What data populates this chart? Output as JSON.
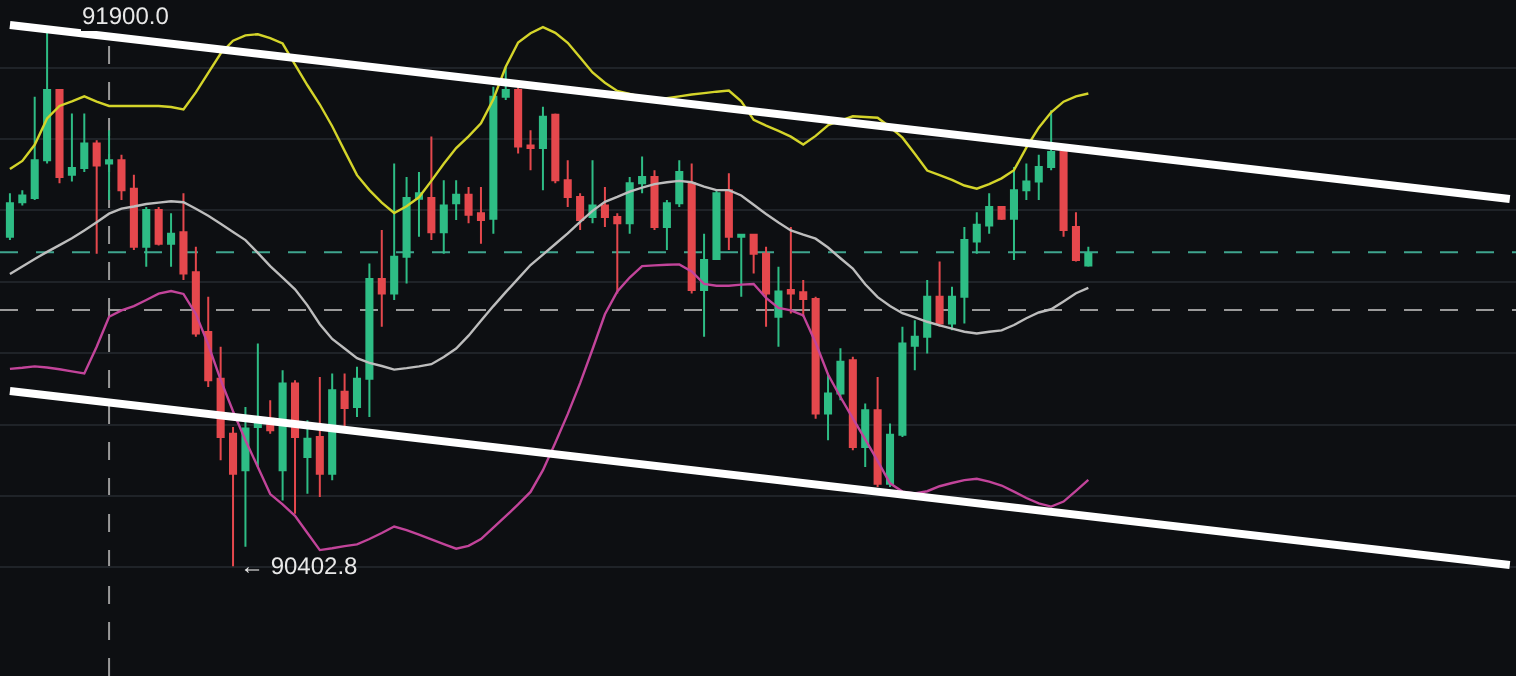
{
  "chart_data": {
    "type": "candlestick",
    "categories": [
      null,
      null,
      null,
      null,
      null,
      null,
      null,
      null,
      null,
      null,
      null,
      null,
      null,
      null,
      null,
      null,
      null,
      null,
      null,
      null,
      null,
      null,
      null,
      null,
      null,
      null,
      null,
      null,
      null,
      null,
      null,
      null,
      null,
      null,
      null,
      null,
      null,
      null,
      null,
      null,
      null,
      null,
      null,
      null,
      null,
      null,
      null,
      null,
      null,
      null,
      null,
      null,
      null,
      null,
      null,
      null,
      null,
      null,
      null,
      null,
      null,
      null,
      null,
      null,
      null,
      null,
      null,
      null,
      null,
      null,
      null,
      null,
      null,
      null,
      null,
      null,
      null,
      null,
      null,
      null,
      null,
      null,
      null,
      null,
      null,
      null,
      null,
      null,
      null,
      null,
      null,
      null,
      null,
      null,
      null,
      null,
      null,
      null,
      null,
      null,
      null,
      null,
      null,
      null,
      null,
      null,
      null,
      null,
      null,
      null,
      null,
      null,
      null,
      null,
      null,
      null,
      null,
      null,
      null,
      null,
      null,
      null
    ],
    "ohlc": [
      [
        91326,
        91448,
        91317,
        91420
      ],
      [
        91423,
        91457,
        91414,
        91442
      ],
      [
        91435,
        91719,
        91429,
        91541
      ],
      [
        91541,
        91900,
        91532,
        91738
      ],
      [
        91738,
        91740,
        91476,
        91494
      ],
      [
        91500,
        91672,
        91481,
        91519
      ],
      [
        91519,
        91672,
        91508,
        91588
      ],
      [
        91588,
        91597,
        91279,
        91526
      ],
      [
        91532,
        91625,
        91429,
        91541
      ],
      [
        91541,
        91556,
        91429,
        91457
      ],
      [
        91461,
        91500,
        91289,
        91298
      ],
      [
        91298,
        91410,
        91242,
        91401
      ],
      [
        91401,
        91410,
        91302,
        91307
      ],
      [
        91307,
        91392,
        91242,
        91335
      ],
      [
        91339,
        91448,
        91205,
        91223
      ],
      [
        91227,
        91298,
        91046,
        91055
      ],
      [
        91059,
        91158,
        90905,
        90924
      ],
      [
        90928,
        91018,
        90700,
        90765
      ],
      [
        90774,
        90793,
        90402.8,
        90662
      ],
      [
        90672,
        90849,
        90457,
        90789
      ],
      [
        90793,
        91027,
        90681,
        90812
      ],
      [
        90816,
        90868,
        90774,
        90784
      ],
      [
        90672,
        90952,
        90587,
        90915
      ],
      [
        90915,
        90924,
        90550,
        90765
      ],
      [
        90709,
        90812,
        90606,
        90760
      ],
      [
        90765,
        90933,
        90597,
        90662
      ],
      [
        90662,
        90943,
        90644,
        90896
      ],
      [
        90892,
        90943,
        90793,
        90846
      ],
      [
        90849,
        90962,
        90821,
        90928
      ],
      [
        90928,
        91251,
        90821,
        91208
      ],
      [
        91208,
        91345,
        91074,
        91167
      ],
      [
        91167,
        91532,
        91149,
        91270
      ],
      [
        91270,
        91494,
        91195,
        91435
      ],
      [
        91433,
        91508,
        91326,
        91448
      ],
      [
        91435,
        91607,
        91317,
        91339
      ],
      [
        91339,
        91485,
        91279,
        91414
      ],
      [
        91420,
        91485,
        91373,
        91444
      ],
      [
        91444,
        91466,
        91364,
        91388
      ],
      [
        91392,
        91466,
        91307,
        91373
      ],
      [
        91377,
        91747,
        91335,
        91719
      ],
      [
        91719,
        91803,
        91710,
        91738
      ],
      [
        91738,
        91756,
        91560,
        91579
      ],
      [
        91582,
        91625,
        91513,
        91575
      ],
      [
        91575,
        91691,
        91457,
        91663
      ],
      [
        91668,
        91672,
        91476,
        91485
      ],
      [
        91485,
        91541,
        91410,
        91438
      ],
      [
        91438,
        91448,
        91345,
        91373
      ],
      [
        91382,
        91541,
        91364,
        91414
      ],
      [
        91414,
        91466,
        91354,
        91382
      ],
      [
        91382,
        91392,
        91167,
        91364
      ],
      [
        91364,
        91494,
        91335,
        91476
      ],
      [
        91476,
        91551,
        91448,
        91494
      ],
      [
        91494,
        91513,
        91345,
        91354
      ],
      [
        91354,
        91429,
        91289,
        91420
      ],
      [
        91420,
        91541,
        91410,
        91508
      ],
      [
        91476,
        91532,
        91167,
        91177
      ],
      [
        91177,
        91335,
        91046,
        91261
      ],
      [
        91264,
        91457,
        91261,
        91448
      ],
      [
        91457,
        91504,
        91289,
        91326
      ],
      [
        91326,
        91335,
        91158,
        91332
      ],
      [
        91332,
        91335,
        91223,
        91279
      ],
      [
        91279,
        91298,
        91074,
        91167
      ],
      [
        91102,
        91242,
        91018,
        91173
      ],
      [
        91177,
        91354,
        91111,
        91167
      ],
      [
        91171,
        91205,
        91102,
        91152
      ],
      [
        91152,
        91158,
        90816,
        90831
      ],
      [
        90831,
        90943,
        90756,
        90887
      ],
      [
        90887,
        91014,
        90868,
        90976
      ],
      [
        90980,
        90990,
        90728,
        90737
      ],
      [
        90737,
        90859,
        90681,
        90840
      ],
      [
        90840,
        90933,
        90625,
        90634
      ],
      [
        90634,
        90803,
        90625,
        90771
      ],
      [
        90771,
        91074,
        90765,
        91027
      ],
      [
        91021,
        91092,
        90952,
        91046
      ],
      [
        91046,
        91205,
        90999,
        91158
      ],
      [
        91158,
        91257,
        91074,
        91083
      ],
      [
        91083,
        91186,
        91064,
        91158
      ],
      [
        91158,
        91354,
        91083,
        91317
      ],
      [
        91313,
        91395,
        91279,
        91360
      ],
      [
        91358,
        91448,
        91335,
        91410
      ],
      [
        91410,
        91410,
        91373,
        91377
      ],
      [
        91377,
        91522,
        91261,
        91457
      ],
      [
        91457,
        91532,
        91429,
        91481
      ],
      [
        91481,
        91556,
        91429,
        91522
      ],
      [
        91522,
        91681,
        91513,
        91564
      ],
      [
        91564,
        91564,
        91326,
        91345
      ],
      [
        91354,
        91395,
        91257,
        91261
      ],
      [
        91246,
        91298,
        91242,
        91279
      ],
      null,
      null,
      null,
      null,
      null,
      null,
      null,
      null,
      null,
      null,
      null,
      null,
      null,
      null,
      null,
      null,
      null,
      null,
      null,
      null,
      null,
      null,
      null,
      null,
      null,
      null,
      null,
      null,
      null,
      null,
      null,
      null,
      null,
      null
    ],
    "colors": [
      "#2ebd85",
      "#2ebd85",
      "#2ebd85",
      "#2ebd85",
      "#e5484d",
      "#2ebd85",
      "#2ebd85",
      "#e5484d",
      "#2ebd85",
      "#e5484d",
      "#e5484d",
      "#2ebd85",
      "#e5484d",
      "#2ebd85",
      "#e5484d",
      "#e5484d",
      "#e5484d",
      "#e5484d",
      "#e5484d",
      "#2ebd85",
      "#2ebd85",
      "#e5484d",
      "#2ebd85",
      "#e5484d",
      "#2ebd85",
      "#e5484d",
      "#2ebd85",
      "#e5484d",
      "#2ebd85",
      "#2ebd85",
      "#e5484d",
      "#2ebd85",
      "#2ebd85",
      "#2ebd85",
      "#e5484d",
      "#2ebd85",
      "#2ebd85",
      "#e5484d",
      "#e5484d",
      "#2ebd85",
      "#2ebd85",
      "#e5484d",
      "#e5484d",
      "#2ebd85",
      "#e5484d",
      "#e5484d",
      "#e5484d",
      "#2ebd85",
      "#e5484d",
      "#e5484d",
      "#2ebd85",
      "#2ebd85",
      "#e5484d",
      "#2ebd85",
      "#2ebd85",
      "#e5484d",
      "#2ebd85",
      "#2ebd85",
      "#e5484d",
      "#2ebd85",
      "#e5484d",
      "#e5484d",
      "#2ebd85",
      "#e5484d",
      "#e5484d",
      "#e5484d",
      "#2ebd85",
      "#2ebd85",
      "#e5484d",
      "#2ebd85",
      "#e5484d",
      "#2ebd85",
      "#2ebd85",
      "#2ebd85",
      "#2ebd85",
      "#e5484d",
      "#2ebd85",
      "#2ebd85",
      "#2ebd85",
      "#2ebd85",
      "#e5484d",
      "#2ebd85",
      "#2ebd85",
      "#2ebd85",
      "#2ebd85",
      "#e5484d",
      "#e5484d",
      "#2ebd85",
      null,
      null,
      null,
      null,
      null,
      null,
      null,
      null,
      null,
      null,
      null,
      null,
      null,
      null,
      null,
      null,
      null,
      null,
      null,
      null,
      null,
      null,
      null,
      null,
      null,
      null,
      null,
      null,
      null,
      null,
      null,
      null,
      null,
      null
    ],
    "series": [
      {
        "type": "line",
        "color": "#d4d42a",
        "values": [
          91516,
          91539,
          91584,
          91658,
          91693,
          91706,
          91720,
          91705,
          91693,
          91693,
          91693,
          91693,
          91693,
          91690,
          91683,
          91731,
          91786,
          91840,
          91876,
          91891,
          91894,
          91883,
          91868,
          91809,
          91751,
          91697,
          91636,
          91567,
          91499,
          91457,
          91422,
          91393,
          91412,
          91437,
          91483,
          91531,
          91575,
          91608,
          91644,
          91712,
          91803,
          91871,
          91897,
          91914,
          91898,
          91870,
          91829,
          91787,
          91758,
          91735,
          91727,
          91718,
          91710,
          91715,
          91720,
          91725,
          91729,
          91733,
          91736,
          91706,
          91654,
          91638,
          91623,
          91607,
          91585,
          91609,
          91639,
          91652,
          91664,
          91662,
          91660,
          91634,
          91604,
          91559,
          91512,
          91499,
          91486,
          91470,
          91461,
          91474,
          91490,
          91513,
          91576,
          91632,
          91675,
          91705,
          91720,
          91728,
          null,
          null,
          null,
          null,
          null,
          null,
          null,
          null,
          null,
          null,
          null,
          null,
          null,
          null,
          null,
          null,
          null,
          null,
          null,
          null,
          null,
          null,
          null,
          null,
          null,
          null,
          null,
          null,
          null,
          null,
          null,
          null,
          null,
          null
        ]
      },
      {
        "type": "line",
        "color": "#bdbdbd",
        "values": [
          91222,
          91243,
          91264,
          91284,
          91303,
          91322,
          91344,
          91367,
          91391,
          91405,
          91411,
          91418,
          91422,
          91426,
          91423,
          91405,
          91385,
          91363,
          91340,
          91317,
          91281,
          91244,
          91212,
          91179,
          91134,
          91081,
          91040,
          91013,
          90986,
          90973,
          90964,
          90954,
          90958,
          90963,
          90969,
          90989,
          91013,
          91049,
          91091,
          91132,
          91171,
          91209,
          91247,
          91276,
          91306,
          91336,
          91368,
          91399,
          91424,
          91438,
          91453,
          91464,
          91474,
          91479,
          91483,
          91479,
          91467,
          91457,
          91457,
          91442,
          91416,
          91390,
          91366,
          91344,
          91332,
          91321,
          91296,
          91266,
          91237,
          91193,
          91157,
          91132,
          91112,
          91100,
          91088,
          91078,
          91069,
          91060,
          91055,
          91060,
          91064,
          91079,
          91098,
          91114,
          91123,
          91145,
          91168,
          91183,
          null,
          null,
          null,
          null,
          null,
          null,
          null,
          null,
          null,
          null,
          null,
          null,
          null,
          null,
          null,
          null,
          null,
          null,
          null,
          null,
          null,
          null,
          null,
          null,
          null,
          null,
          null,
          null,
          null,
          null,
          null,
          null,
          null,
          null
        ]
      },
      {
        "type": "line",
        "color": "#c2449a",
        "values": [
          90956,
          90959,
          90963,
          90960,
          90955,
          90949,
          90943,
          91018,
          91102,
          91120,
          91132,
          91149,
          91167,
          91174,
          91166,
          91110,
          91024,
          90925,
          90837,
          90756,
          90681,
          90605,
          90576,
          90544,
          90496,
          90448,
          90453,
          90459,
          90464,
          90479,
          90496,
          90514,
          90504,
          90491,
          90478,
          90465,
          90452,
          90460,
          90479,
          90511,
          90543,
          90576,
          90611,
          90672,
          90749,
          90829,
          90916,
          91011,
          91109,
          91173,
          91212,
          91244,
          91246,
          91248,
          91249,
          91229,
          91194,
          91189,
          91189,
          91192,
          91194,
          91155,
          91127,
          91120,
          91106,
          91029,
          90940,
          90877,
          90817,
          90758,
          90698,
          90635,
          90612,
          90607,
          90613,
          90627,
          90636,
          90644,
          90648,
          90640,
          90629,
          90612,
          90594,
          90579,
          90570,
          90584,
          90614,
          90645,
          null,
          null,
          null,
          null,
          null,
          null,
          null,
          null,
          null,
          null,
          null,
          null,
          null,
          null,
          null,
          null,
          null,
          null,
          null,
          null,
          null,
          null,
          null,
          null,
          null,
          null,
          null,
          null,
          null,
          null,
          null,
          null,
          null,
          null
        ]
      },
      {
        "type": "line",
        "color": "#ffffff",
        "values": [
          91920,
          null,
          null,
          null,
          null,
          null,
          null,
          null,
          null,
          null,
          null,
          null,
          null,
          null,
          null,
          null,
          null,
          null,
          null,
          null,
          null,
          null,
          null,
          null,
          null,
          null,
          null,
          null,
          null,
          null,
          null,
          null,
          null,
          null,
          null,
          null,
          null,
          null,
          null,
          null,
          null,
          null,
          null,
          null,
          null,
          null,
          null,
          null,
          null,
          null,
          null,
          null,
          null,
          null,
          null,
          null,
          null,
          null,
          null,
          null,
          null,
          null,
          null,
          null,
          null,
          null,
          null,
          null,
          null,
          null,
          null,
          null,
          null,
          null,
          null,
          null,
          null,
          null,
          null,
          null,
          null,
          null,
          null,
          null,
          null,
          null,
          null,
          null,
          null,
          null,
          null,
          null,
          null,
          null,
          null,
          null,
          null,
          null,
          null,
          null,
          null,
          null,
          null,
          null,
          null,
          null,
          null,
          null,
          null,
          null,
          null,
          null,
          null,
          null,
          null,
          null,
          null,
          null,
          null,
          null,
          null,
          91432
        ]
      },
      {
        "type": "line",
        "color": "#ffffff",
        "values": [
          90894,
          null,
          null,
          null,
          null,
          null,
          null,
          null,
          null,
          null,
          null,
          null,
          null,
          null,
          null,
          null,
          null,
          null,
          null,
          null,
          null,
          null,
          null,
          null,
          null,
          null,
          null,
          null,
          null,
          null,
          null,
          null,
          null,
          null,
          null,
          null,
          null,
          null,
          null,
          null,
          null,
          null,
          null,
          null,
          null,
          null,
          null,
          null,
          null,
          null,
          null,
          null,
          null,
          null,
          null,
          null,
          null,
          null,
          null,
          null,
          null,
          null,
          null,
          null,
          null,
          null,
          null,
          null,
          null,
          null,
          null,
          null,
          null,
          null,
          null,
          null,
          null,
          null,
          null,
          null,
          null,
          null,
          null,
          null,
          null,
          null,
          null,
          null,
          null,
          null,
          null,
          null,
          null,
          null,
          null,
          null,
          null,
          null,
          null,
          null,
          null,
          null,
          null,
          null,
          null,
          null,
          null,
          null,
          null,
          null,
          null,
          null,
          null,
          null,
          null,
          null,
          null,
          null,
          null,
          null,
          null,
          90406
        ]
      }
    ],
    "ylim": [
      90095,
      91990
    ],
    "yticks": [
      {
        "value": 90400,
        "label": null
      },
      {
        "value": 90600,
        "label": null
      },
      {
        "value": 90800,
        "label": null
      },
      {
        "value": 91000,
        "label": null
      },
      {
        "value": 91200,
        "label": null
      },
      {
        "value": 91400,
        "label": null
      },
      {
        "value": 91600,
        "label": null
      },
      {
        "value": 91800,
        "label": null
      }
    ],
    "grid": "y",
    "ref_lines": [
      {
        "axis": "y",
        "value": 91283,
        "color": "#3fa58e",
        "line_style": "dashed"
      },
      {
        "axis": "y",
        "value": 91121,
        "color": "#9a9a9a",
        "line_style": "dashed"
      }
    ],
    "annotations": [
      "91900.0",
      "← 90402.8"
    ]
  }
}
